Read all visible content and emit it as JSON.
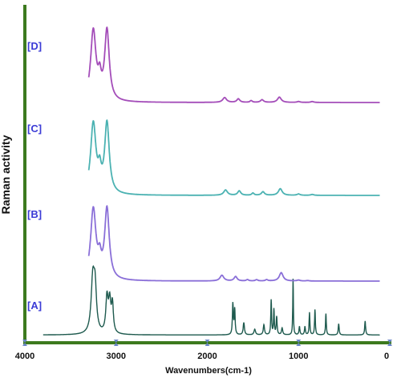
{
  "chart_data": {
    "type": "line",
    "title": "",
    "xlabel": "Wavenumbers(cm-1)",
    "ylabel": "Raman activity",
    "xlim": [
      4000,
      0
    ],
    "x_ticks": [
      "4000",
      "3000",
      "2000",
      "1000",
      "0"
    ],
    "grid": false,
    "colors": {
      "axis": "#3c7a1e",
      "A": "#1e5a4e",
      "B": "#8a6fd8",
      "C": "#4bb2b2",
      "D": "#a44db9",
      "label": "#3b3bd6"
    },
    "series": [
      {
        "name": "[A]",
        "offset": 0.0,
        "peaks": [
          [
            3255,
            0.95,
            22
          ],
          [
            3230,
            0.7,
            18
          ],
          [
            3100,
            0.62,
            15
          ],
          [
            3070,
            0.55,
            15
          ],
          [
            3040,
            0.5,
            12
          ],
          [
            1720,
            0.55,
            6
          ],
          [
            1700,
            0.45,
            6
          ],
          [
            1600,
            0.22,
            8
          ],
          [
            1480,
            0.1,
            10
          ],
          [
            1380,
            0.18,
            8
          ],
          [
            1300,
            0.62,
            5
          ],
          [
            1270,
            0.45,
            5
          ],
          [
            1240,
            0.32,
            6
          ],
          [
            1180,
            0.12,
            8
          ],
          [
            1060,
            1.0,
            4
          ],
          [
            990,
            0.15,
            6
          ],
          [
            930,
            0.15,
            6
          ],
          [
            880,
            0.4,
            5
          ],
          [
            820,
            0.45,
            5
          ],
          [
            700,
            0.38,
            5
          ],
          [
            560,
            0.2,
            6
          ],
          [
            270,
            0.25,
            6
          ]
        ],
        "baseline": 0.01
      },
      {
        "name": "[B]",
        "offset": 1.0,
        "peaks": [
          [
            3250,
            1.6,
            35
          ],
          [
            3180,
            0.35,
            20
          ],
          [
            3100,
            1.6,
            30
          ],
          [
            1840,
            0.13,
            25
          ],
          [
            1690,
            0.1,
            20
          ],
          [
            1560,
            0.03,
            15
          ],
          [
            1460,
            0.03,
            15
          ],
          [
            1350,
            0.03,
            15
          ],
          [
            1190,
            0.19,
            25
          ],
          [
            1000,
            0.02,
            20
          ],
          [
            900,
            0.01,
            20
          ]
        ],
        "baseline": 0.0
      },
      {
        "name": "[C]",
        "offset": 2.0,
        "peaks": [
          [
            3250,
            1.6,
            35
          ],
          [
            3180,
            0.4,
            20
          ],
          [
            3100,
            1.6,
            30
          ],
          [
            1800,
            0.12,
            25
          ],
          [
            1650,
            0.1,
            20
          ],
          [
            1500,
            0.05,
            15
          ],
          [
            1390,
            0.08,
            20
          ],
          [
            1200,
            0.15,
            25
          ],
          [
            1000,
            0.03,
            20
          ],
          [
            850,
            0.02,
            20
          ]
        ],
        "baseline": 0.0
      },
      {
        "name": "[D]",
        "offset": 3.0,
        "peaks": [
          [
            3250,
            1.6,
            35
          ],
          [
            3180,
            0.4,
            20
          ],
          [
            3100,
            1.6,
            30
          ],
          [
            1810,
            0.11,
            25
          ],
          [
            1660,
            0.08,
            20
          ],
          [
            1520,
            0.04,
            15
          ],
          [
            1400,
            0.06,
            20
          ],
          [
            1210,
            0.12,
            25
          ],
          [
            1000,
            0.02,
            20
          ],
          [
            850,
            0.02,
            20
          ]
        ],
        "baseline": 0.0
      }
    ]
  }
}
